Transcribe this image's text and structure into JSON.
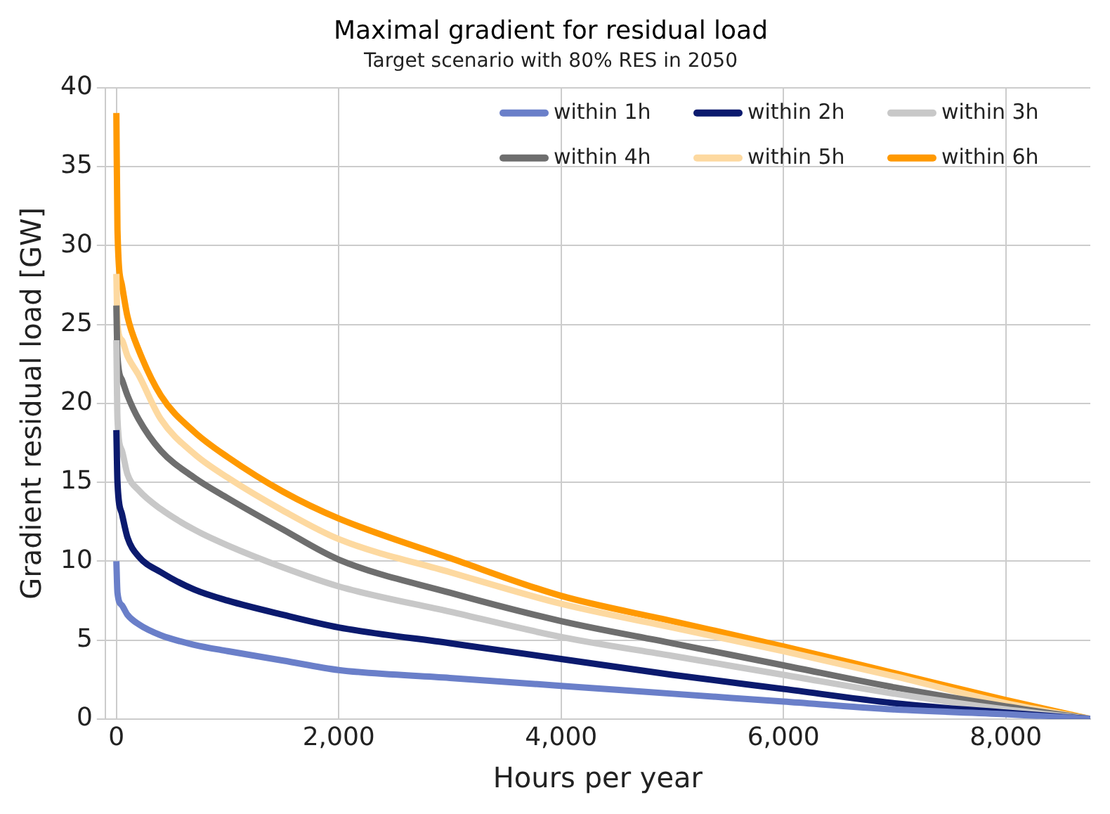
{
  "chart_data": {
    "type": "line",
    "title": "Maximal gradient for residual load",
    "subtitle": "Target scenario with 80% RES in 2050",
    "xlabel": "Hours per year",
    "ylabel": "Gradient residual load [GW]",
    "x": [
      0,
      10,
      50,
      100,
      200,
      400,
      700,
      1000,
      1500,
      2000,
      3000,
      4000,
      5000,
      6000,
      7000,
      8000,
      8760
    ],
    "series": [
      {
        "name": "within 1h",
        "color": "#6a7fc9",
        "values": [
          10.0,
          8,
          7.2,
          6.6,
          6.0,
          5.3,
          4.7,
          4.3,
          3.7,
          3.1,
          2.6,
          2.1,
          1.6,
          1.1,
          0.6,
          0.3,
          0
        ]
      },
      {
        "name": "within 2h",
        "color": "#0b1a6e",
        "values": [
          18.3,
          15,
          13,
          11.5,
          10.3,
          9.3,
          8.2,
          7.5,
          6.6,
          5.8,
          4.8,
          3.8,
          2.8,
          1.9,
          1.0,
          0.4,
          0
        ]
      },
      {
        "name": "within 3h",
        "color": "#c8c8c8",
        "values": [
          24,
          19,
          17,
          15.5,
          14.5,
          13.3,
          12.0,
          11.0,
          9.6,
          8.4,
          6.8,
          5.2,
          4.0,
          2.8,
          1.6,
          0.6,
          0
        ]
      },
      {
        "name": "within 4h",
        "color": "#6e6e6e",
        "values": [
          26.2,
          23,
          21.5,
          20.5,
          19,
          17,
          15.3,
          14,
          12,
          10.1,
          8.0,
          6.2,
          4.8,
          3.4,
          2.0,
          0.8,
          0
        ]
      },
      {
        "name": "within 5h",
        "color": "#fdd9a0",
        "values": [
          28.2,
          25,
          24,
          23,
          21.8,
          19,
          16.8,
          15.3,
          13.2,
          11.4,
          9.3,
          7.3,
          5.8,
          4.3,
          2.7,
          1.0,
          0
        ]
      },
      {
        "name": "within 6h",
        "color": "#ff9900",
        "values": [
          38.4,
          31,
          27.5,
          25.5,
          23.4,
          20.5,
          18.2,
          16.6,
          14.4,
          12.7,
          10.2,
          7.8,
          6.2,
          4.6,
          2.9,
          1.2,
          0
        ]
      }
    ],
    "xlim": [
      -100,
      8760
    ],
    "xticks": [
      {
        "value": 0,
        "label": "0"
      },
      {
        "value": 2000,
        "label": "2,000"
      },
      {
        "value": 4000,
        "label": "4,000"
      },
      {
        "value": 6000,
        "label": "6,000"
      },
      {
        "value": 8000,
        "label": "8,000"
      }
    ],
    "ylim": [
      0,
      40
    ],
    "yticks": [
      0,
      5,
      10,
      15,
      20,
      25,
      30,
      35,
      40
    ],
    "grid": true,
    "legend": "top right"
  }
}
